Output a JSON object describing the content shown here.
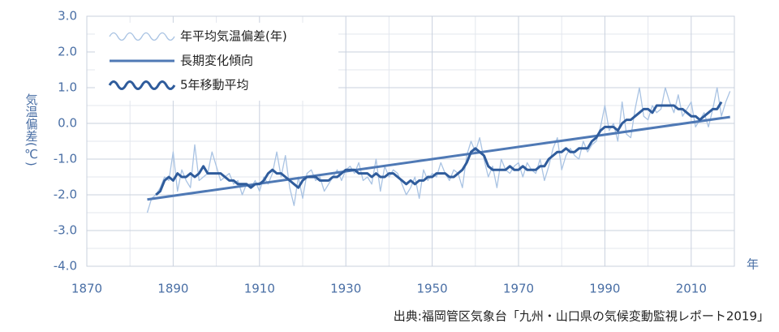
{
  "chart_data": {
    "type": "line",
    "ylabel": "気温偏差(℃)",
    "xlabel": "年",
    "source": "出典:福岡管区気象台「九州・山口県の気候変動監視レポート2019」",
    "xlim": [
      1870,
      2020
    ],
    "ylim": [
      -4,
      3
    ],
    "xticks": [
      1870,
      1890,
      1910,
      1930,
      1950,
      1970,
      1990,
      2010
    ],
    "yticks": [
      {
        "value": -4,
        "label": "-4.0"
      },
      {
        "value": -3,
        "label": "-3.0"
      },
      {
        "value": -2,
        "label": "-2.0"
      },
      {
        "value": -1,
        "label": "-1.0"
      },
      {
        "value": 0,
        "label": "0.0"
      },
      {
        "value": 1,
        "label": "1.0"
      },
      {
        "value": 2,
        "label": "2.0"
      },
      {
        "value": 3,
        "label": "3.0"
      }
    ],
    "grid": true,
    "legend": "upper left",
    "x": [
      1884,
      1885,
      1886,
      1887,
      1888,
      1889,
      1890,
      1891,
      1892,
      1893,
      1894,
      1895,
      1896,
      1897,
      1898,
      1899,
      1900,
      1901,
      1902,
      1903,
      1904,
      1905,
      1906,
      1907,
      1908,
      1909,
      1910,
      1911,
      1912,
      1913,
      1914,
      1915,
      1916,
      1917,
      1918,
      1919,
      1920,
      1921,
      1922,
      1923,
      1924,
      1925,
      1926,
      1927,
      1928,
      1929,
      1930,
      1931,
      1932,
      1933,
      1934,
      1935,
      1936,
      1937,
      1938,
      1939,
      1940,
      1941,
      1942,
      1943,
      1944,
      1945,
      1946,
      1947,
      1948,
      1949,
      1950,
      1951,
      1952,
      1953,
      1954,
      1955,
      1956,
      1957,
      1958,
      1959,
      1960,
      1961,
      1962,
      1963,
      1964,
      1965,
      1966,
      1967,
      1968,
      1969,
      1970,
      1971,
      1972,
      1973,
      1974,
      1975,
      1976,
      1977,
      1978,
      1979,
      1980,
      1981,
      1982,
      1983,
      1984,
      1985,
      1986,
      1987,
      1988,
      1989,
      1990,
      1991,
      1992,
      1993,
      1994,
      1995,
      1996,
      1997,
      1998,
      1999,
      2000,
      2001,
      2002,
      2003,
      2004,
      2005,
      2006,
      2007,
      2008,
      2009,
      2010,
      2011,
      2012,
      2013,
      2014,
      2015,
      2016,
      2017,
      2018,
      2019
    ],
    "series": [
      {
        "name": "年平均気温偏差(年)",
        "color": "#a9c3e3",
        "width": 1.3,
        "legend_style": "wave",
        "values": [
          -2.5,
          -2.1,
          -2.0,
          -1.8,
          -1.5,
          -1.6,
          -0.8,
          -1.9,
          -1.3,
          -1.6,
          -1.8,
          -0.6,
          -1.6,
          -1.5,
          -1.4,
          -0.8,
          -1.2,
          -1.6,
          -1.5,
          -1.4,
          -1.7,
          -1.6,
          -2.0,
          -1.7,
          -1.8,
          -1.6,
          -1.9,
          -1.5,
          -1.7,
          -1.4,
          -0.8,
          -1.5,
          -0.9,
          -1.8,
          -2.3,
          -1.5,
          -2.1,
          -1.4,
          -1.3,
          -1.6,
          -1.5,
          -1.9,
          -1.7,
          -1.5,
          -1.3,
          -1.6,
          -1.3,
          -1.2,
          -1.4,
          -1.1,
          -1.6,
          -1.5,
          -1.7,
          -1.0,
          -1.9,
          -1.2,
          -1.5,
          -1.3,
          -1.4,
          -1.7,
          -2.0,
          -1.8,
          -1.5,
          -2.1,
          -1.3,
          -1.6,
          -1.4,
          -1.5,
          -1.1,
          -1.4,
          -1.6,
          -1.3,
          -1.4,
          -1.8,
          -0.9,
          -0.5,
          -0.8,
          -0.4,
          -1.0,
          -1.5,
          -1.2,
          -1.8,
          -1.0,
          -1.3,
          -1.4,
          -1.2,
          -1.1,
          -1.5,
          -1.1,
          -1.3,
          -1.4,
          -1.0,
          -1.6,
          -1.2,
          -0.7,
          -0.4,
          -1.3,
          -0.9,
          -0.7,
          -0.9,
          -1.0,
          -0.5,
          -0.8,
          -0.6,
          -0.5,
          -0.1,
          0.5,
          -0.2,
          0.0,
          -0.5,
          0.6,
          -0.3,
          -0.4,
          0.4,
          1.0,
          0.2,
          0.1,
          0.5,
          0.3,
          0.4,
          1.0,
          0.6,
          0.3,
          0.8,
          0.2,
          0.4,
          0.6,
          -0.1,
          0.1,
          0.3,
          -0.1,
          0.4,
          1.0,
          0.2,
          0.6,
          0.9
        ]
      },
      {
        "name": "長期変化傾向",
        "color": "#4f79b5",
        "width": 3,
        "legend_style": "straight",
        "x": [
          1884,
          2019
        ],
        "values": [
          -2.13,
          0.18
        ]
      },
      {
        "name": "5年移動平均",
        "color": "#2f5c9c",
        "width": 3,
        "legend_style": "wave",
        "values": [
          null,
          null,
          -2.0,
          -1.9,
          -1.6,
          -1.5,
          -1.6,
          -1.4,
          -1.5,
          -1.5,
          -1.4,
          -1.5,
          -1.4,
          -1.2,
          -1.4,
          -1.4,
          -1.4,
          -1.4,
          -1.5,
          -1.6,
          -1.6,
          -1.7,
          -1.7,
          -1.7,
          -1.8,
          -1.7,
          -1.7,
          -1.6,
          -1.4,
          -1.3,
          -1.4,
          -1.4,
          -1.5,
          -1.6,
          -1.7,
          -1.8,
          -1.6,
          -1.5,
          -1.5,
          -1.5,
          -1.6,
          -1.6,
          -1.6,
          -1.5,
          -1.5,
          -1.4,
          -1.3,
          -1.3,
          -1.3,
          -1.4,
          -1.4,
          -1.4,
          -1.5,
          -1.4,
          -1.5,
          -1.5,
          -1.4,
          -1.4,
          -1.5,
          -1.6,
          -1.7,
          -1.6,
          -1.7,
          -1.6,
          -1.6,
          -1.5,
          -1.5,
          -1.4,
          -1.4,
          -1.4,
          -1.5,
          -1.5,
          -1.4,
          -1.3,
          -1.1,
          -0.8,
          -0.7,
          -0.8,
          -0.9,
          -1.2,
          -1.3,
          -1.3,
          -1.3,
          -1.3,
          -1.2,
          -1.3,
          -1.3,
          -1.2,
          -1.3,
          -1.3,
          -1.3,
          -1.2,
          -1.2,
          -1.0,
          -0.9,
          -0.8,
          -0.8,
          -0.7,
          -0.8,
          -0.8,
          -0.7,
          -0.7,
          -0.7,
          -0.5,
          -0.4,
          -0.2,
          -0.1,
          -0.1,
          -0.1,
          -0.2,
          0.0,
          0.1,
          0.1,
          0.2,
          0.3,
          0.4,
          0.4,
          0.3,
          0.5,
          0.5,
          0.5,
          0.5,
          0.5,
          0.4,
          0.4,
          0.3,
          0.2,
          0.2,
          0.1,
          0.2,
          0.3,
          0.4,
          0.4,
          0.6,
          null,
          null
        ]
      }
    ]
  }
}
